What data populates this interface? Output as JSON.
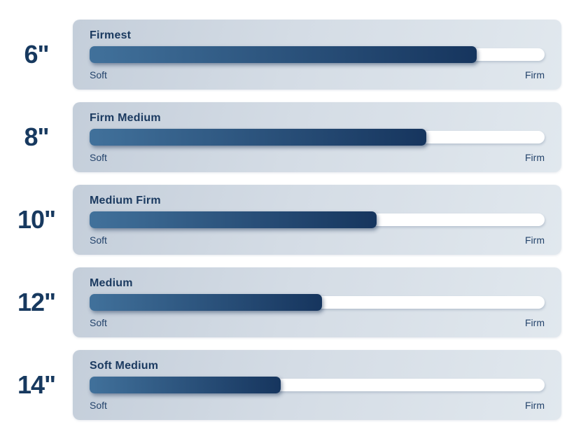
{
  "colors": {
    "fill_gradient_start": "#41719b",
    "fill_gradient_end": "#16355e",
    "card_gradient_start": "#c4ceda",
    "card_gradient_end": "#e1e8ee",
    "track": "#ffffff",
    "text_navy": "#17395f"
  },
  "chart_data": {
    "type": "bar",
    "orientation": "horizontal",
    "title": "",
    "categories": [
      "6\"",
      "8\"",
      "10\"",
      "12\"",
      "14\""
    ],
    "series": [
      {
        "name": "Firmness level (percent of Soft-to-Firm scale)",
        "values": [
          85,
          74,
          63,
          51,
          42
        ]
      }
    ],
    "bar_labels": [
      "Firmest",
      "Firm Medium",
      "Medium Firm",
      "Medium",
      "Soft Medium"
    ],
    "scale_min_label": "Soft",
    "scale_max_label": "Firm",
    "xlim": [
      0,
      100
    ],
    "grid": false,
    "legend": false
  },
  "rows": [
    {
      "size": "6\"",
      "title": "Firmest",
      "percent": 85,
      "soft": "Soft",
      "firm": "Firm"
    },
    {
      "size": "8\"",
      "title": "Firm Medium",
      "percent": 74,
      "soft": "Soft",
      "firm": "Firm"
    },
    {
      "size": "10\"",
      "title": "Medium Firm",
      "percent": 63,
      "soft": "Soft",
      "firm": "Firm"
    },
    {
      "size": "12\"",
      "title": "Medium",
      "percent": 51,
      "soft": "Soft",
      "firm": "Firm"
    },
    {
      "size": "14\"",
      "title": "Soft Medium",
      "percent": 42,
      "soft": "Soft",
      "firm": "Firm"
    }
  ]
}
